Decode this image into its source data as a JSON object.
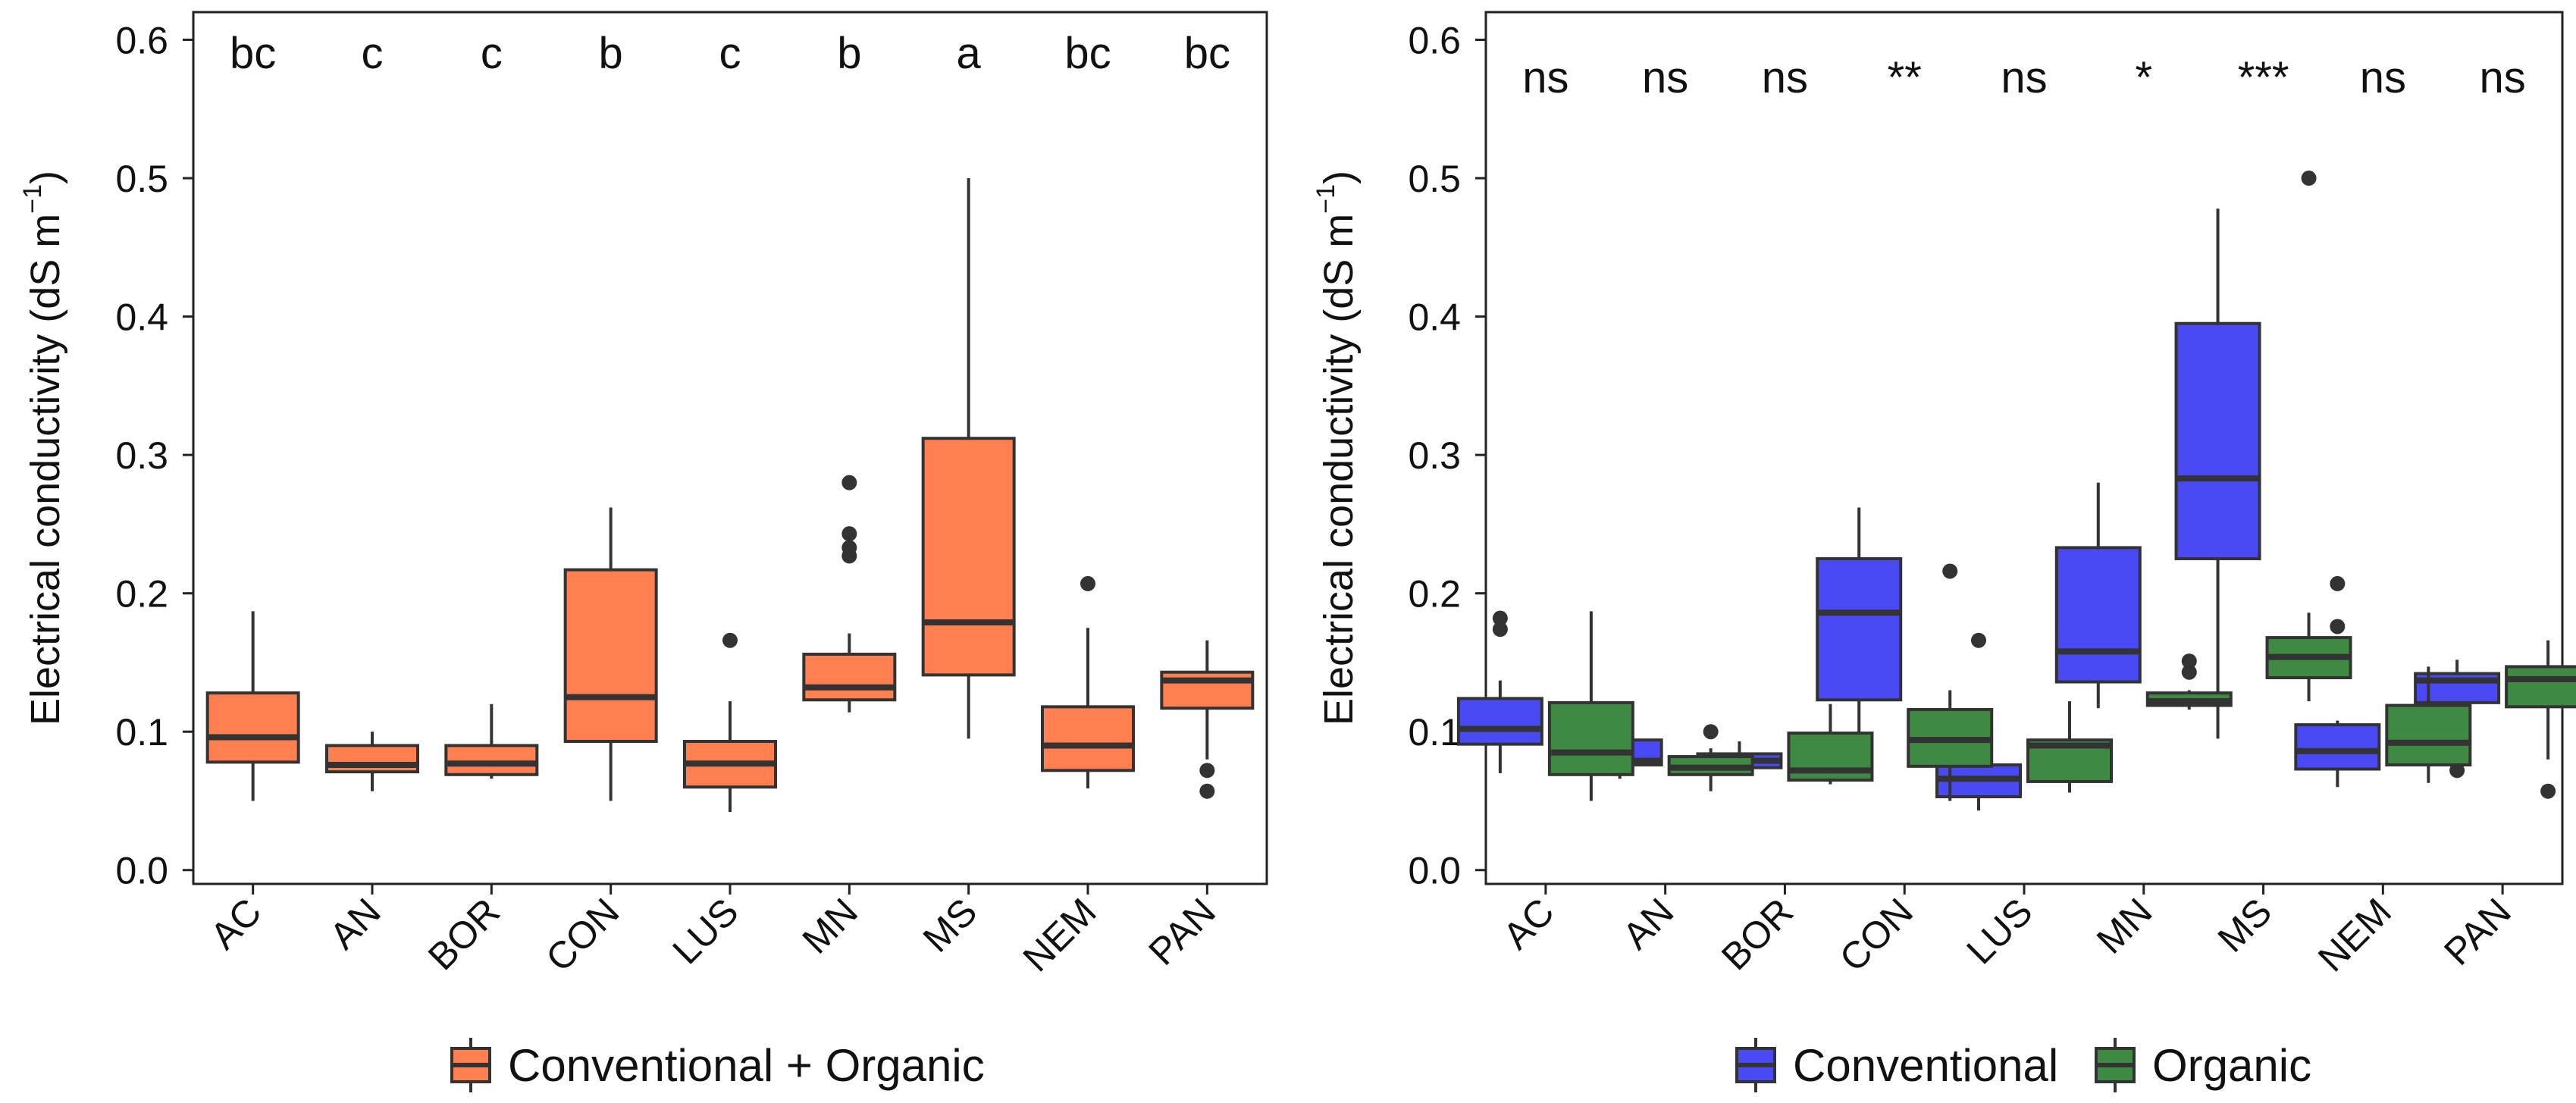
{
  "chart_data": [
    {
      "type": "boxplot",
      "panel": "left",
      "ylabel": "Electrical conductivity (dS m",
      "ylabel_sup": "−1",
      "ylabel_close": ")",
      "ylim": [
        -0.01,
        0.62
      ],
      "yticks": [
        {
          "value": 0.0,
          "label": "0.0"
        },
        {
          "value": 0.1,
          "label": "0.1"
        },
        {
          "value": 0.2,
          "label": "0.2"
        },
        {
          "value": 0.3,
          "label": "0.3"
        },
        {
          "value": 0.4,
          "label": "0.4"
        },
        {
          "value": 0.5,
          "label": "0.5"
        },
        {
          "value": 0.6,
          "label": "0.6"
        }
      ],
      "categories": [
        "AC",
        "AN",
        "BOR",
        "CON",
        "LUS",
        "MN",
        "MS",
        "NEM",
        "PAN"
      ],
      "annotations": [
        "bc",
        "c",
        "c",
        "b",
        "c",
        "b",
        "a",
        "bc",
        "bc"
      ],
      "series": [
        {
          "name": "Conventional + Organic",
          "color": "#FF7F50",
          "boxes": [
            {
              "min": 0.05,
              "q1": 0.078,
              "median": 0.096,
              "q3": 0.128,
              "max": 0.187,
              "outliers": []
            },
            {
              "min": 0.057,
              "q1": 0.071,
              "median": 0.076,
              "q3": 0.09,
              "max": 0.1,
              "outliers": []
            },
            {
              "min": 0.066,
              "q1": 0.069,
              "median": 0.077,
              "q3": 0.09,
              "max": 0.12,
              "outliers": []
            },
            {
              "min": 0.05,
              "q1": 0.093,
              "median": 0.125,
              "q3": 0.217,
              "max": 0.262,
              "outliers": []
            },
            {
              "min": 0.042,
              "q1": 0.06,
              "median": 0.077,
              "q3": 0.093,
              "max": 0.122,
              "outliers": [
                0.166
              ]
            },
            {
              "min": 0.114,
              "q1": 0.123,
              "median": 0.132,
              "q3": 0.156,
              "max": 0.171,
              "outliers": [
                0.227,
                0.233,
                0.243,
                0.28
              ]
            },
            {
              "min": 0.095,
              "q1": 0.141,
              "median": 0.179,
              "q3": 0.312,
              "max": 0.5,
              "outliers": []
            },
            {
              "min": 0.059,
              "q1": 0.072,
              "median": 0.09,
              "q3": 0.118,
              "max": 0.175,
              "outliers": [
                0.207
              ]
            },
            {
              "min": 0.08,
              "q1": 0.117,
              "median": 0.137,
              "q3": 0.143,
              "max": 0.166,
              "outliers": [
                0.057,
                0.072
              ]
            }
          ]
        }
      ]
    },
    {
      "type": "boxplot",
      "panel": "right",
      "ylabel": "Electrical conductivity (dS m",
      "ylabel_sup": "−1",
      "ylabel_close": ")",
      "ylim": [
        -0.01,
        0.62
      ],
      "yticks": [
        {
          "value": 0.0,
          "label": "0.0"
        },
        {
          "value": 0.1,
          "label": "0.1"
        },
        {
          "value": 0.2,
          "label": "0.2"
        },
        {
          "value": 0.3,
          "label": "0.3"
        },
        {
          "value": 0.4,
          "label": "0.4"
        },
        {
          "value": 0.5,
          "label": "0.5"
        },
        {
          "value": 0.6,
          "label": "0.6"
        }
      ],
      "categories": [
        "AC",
        "AN",
        "BOR",
        "CON",
        "LUS",
        "MN",
        "MS",
        "NEM",
        "PAN"
      ],
      "annotations": [
        "ns",
        "ns",
        "ns",
        "**",
        "ns",
        "*",
        "***",
        "ns",
        "ns"
      ],
      "series": [
        {
          "name": "Conventional",
          "color": "#4A4AF4",
          "boxes": [
            {
              "min": 0.07,
              "q1": 0.091,
              "median": 0.102,
              "q3": 0.124,
              "max": 0.137,
              "outliers": [
                0.174,
                0.182
              ]
            },
            {
              "min": 0.066,
              "q1": 0.076,
              "median": 0.079,
              "q3": 0.094,
              "max": 0.1,
              "outliers": []
            },
            {
              "min": 0.069,
              "q1": 0.074,
              "median": 0.079,
              "q3": 0.084,
              "max": 0.093,
              "outliers": []
            },
            {
              "min": 0.093,
              "q1": 0.123,
              "median": 0.186,
              "q3": 0.225,
              "max": 0.262,
              "outliers": []
            },
            {
              "min": 0.043,
              "q1": 0.053,
              "median": 0.066,
              "q3": 0.076,
              "max": 0.094,
              "outliers": [
                0.166
              ]
            },
            {
              "min": 0.117,
              "q1": 0.136,
              "median": 0.158,
              "q3": 0.233,
              "max": 0.28,
              "outliers": []
            },
            {
              "min": 0.095,
              "q1": 0.225,
              "median": 0.283,
              "q3": 0.395,
              "max": 0.478,
              "outliers": []
            },
            {
              "min": 0.06,
              "q1": 0.073,
              "median": 0.086,
              "q3": 0.105,
              "max": 0.108,
              "outliers": [
                0.176,
                0.207
              ]
            },
            {
              "min": 0.109,
              "q1": 0.121,
              "median": 0.137,
              "q3": 0.142,
              "max": 0.152,
              "outliers": [
                0.072,
                0.084
              ]
            }
          ]
        },
        {
          "name": "Organic",
          "color": "#3F8A42",
          "boxes": [
            {
              "min": 0.05,
              "q1": 0.069,
              "median": 0.085,
              "q3": 0.121,
              "max": 0.187,
              "outliers": []
            },
            {
              "min": 0.057,
              "q1": 0.069,
              "median": 0.074,
              "q3": 0.082,
              "max": 0.088,
              "outliers": [
                0.1
              ]
            },
            {
              "min": 0.062,
              "q1": 0.065,
              "median": 0.072,
              "q3": 0.099,
              "max": 0.12,
              "outliers": []
            },
            {
              "min": 0.05,
              "q1": 0.075,
              "median": 0.094,
              "q3": 0.116,
              "max": 0.13,
              "outliers": [
                0.216
              ]
            },
            {
              "min": 0.056,
              "q1": 0.064,
              "median": 0.09,
              "q3": 0.094,
              "max": 0.122,
              "outliers": []
            },
            {
              "min": 0.116,
              "q1": 0.119,
              "median": 0.122,
              "q3": 0.128,
              "max": 0.13,
              "outliers": [
                0.143,
                0.151
              ]
            },
            {
              "min": 0.122,
              "q1": 0.139,
              "median": 0.154,
              "q3": 0.168,
              "max": 0.186,
              "outliers": [
                0.5
              ]
            },
            {
              "min": 0.063,
              "q1": 0.076,
              "median": 0.092,
              "q3": 0.119,
              "max": 0.147,
              "outliers": []
            },
            {
              "min": 0.08,
              "q1": 0.118,
              "median": 0.138,
              "q3": 0.147,
              "max": 0.166,
              "outliers": [
                0.057
              ]
            }
          ]
        }
      ]
    }
  ],
  "legends": [
    {
      "items": [
        {
          "label": "Conventional + Organic",
          "color": "#FF7F50"
        }
      ]
    },
    {
      "items": [
        {
          "label": "Conventional",
          "color": "#4A4AF4"
        },
        {
          "label": "Organic",
          "color": "#3F8A42"
        }
      ]
    }
  ]
}
